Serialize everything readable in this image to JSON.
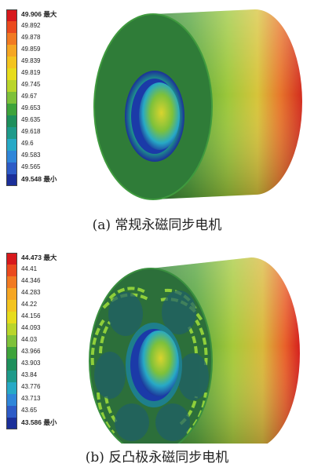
{
  "panel_a": {
    "caption": "(a) 常规永磁同步电机",
    "legend": {
      "max_label": "最大",
      "min_label": "最小",
      "values": [
        "49.906",
        "49.892",
        "49.878",
        "49.859",
        "49.839",
        "49.819",
        "49.745",
        "49.67",
        "49.653",
        "49.635",
        "49.618",
        "49.6",
        "49.583",
        "49.565",
        "49.548"
      ],
      "colors": [
        "#d7191c",
        "#ea4a1e",
        "#f17a22",
        "#f5a623",
        "#f3c41f",
        "#e7dc1c",
        "#b9d52b",
        "#7ec13a",
        "#3ea33b",
        "#1e8f5c",
        "#1e9a8a",
        "#27a9c6",
        "#2f86d9",
        "#2d5bc6",
        "#1b2f99"
      ]
    }
  },
  "panel_b": {
    "caption": "(b) 反凸极永磁同步电机",
    "legend": {
      "max_label": "最大",
      "min_label": "最小",
      "values": [
        "44.473",
        "44.41",
        "44.346",
        "44.283",
        "44.22",
        "44.156",
        "44.093",
        "44.03",
        "43.966",
        "43.903",
        "43.84",
        "43.776",
        "43.713",
        "43.65",
        "43.586"
      ],
      "colors": [
        "#d7191c",
        "#ea4a1e",
        "#f17a22",
        "#f5a623",
        "#f3c41f",
        "#e7dc1c",
        "#b9d52b",
        "#7ec13a",
        "#3ea33b",
        "#1e8f5c",
        "#1e9a8a",
        "#27a9c6",
        "#2f86d9",
        "#2d5bc6",
        "#1b2f99"
      ]
    }
  }
}
